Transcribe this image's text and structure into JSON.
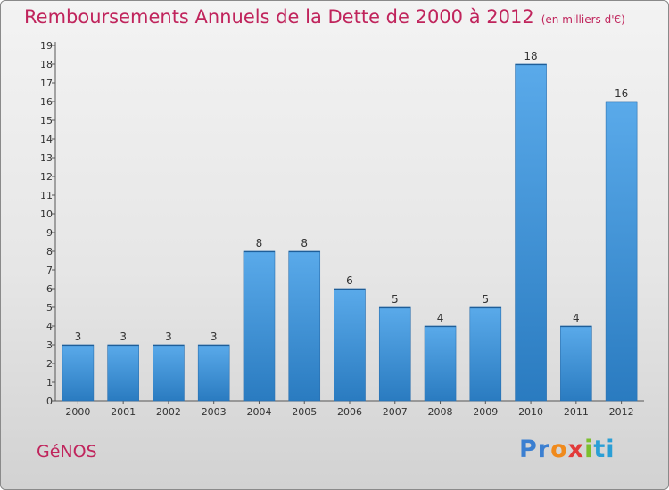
{
  "header": {
    "title": "Remboursements Annuels de la Dette de 2000 à 2012",
    "subtitle": "(en milliers d'€)"
  },
  "footer": {
    "commune": "GéNOS",
    "logo": [
      "Pr",
      "o",
      "x",
      "i",
      "ti"
    ]
  },
  "colors": {
    "bar_top": "#5aaaea",
    "bar_bottom": "#2a7bc0",
    "title": "#c0245c"
  },
  "chart_data": {
    "type": "bar",
    "title": "Remboursements Annuels de la Dette de 2000 à 2012",
    "categories": [
      "2000",
      "2001",
      "2002",
      "2003",
      "2004",
      "2005",
      "2006",
      "2007",
      "2008",
      "2009",
      "2010",
      "2011",
      "2012"
    ],
    "values": [
      3,
      3,
      3,
      3,
      8,
      8,
      6,
      5,
      4,
      5,
      18,
      4,
      16
    ],
    "ylim": [
      0,
      19
    ],
    "yticks": [
      0,
      1,
      2,
      3,
      4,
      5,
      6,
      7,
      8,
      9,
      10,
      11,
      12,
      13,
      14,
      15,
      16,
      17,
      18,
      19
    ],
    "grid": false,
    "legend": "none"
  }
}
